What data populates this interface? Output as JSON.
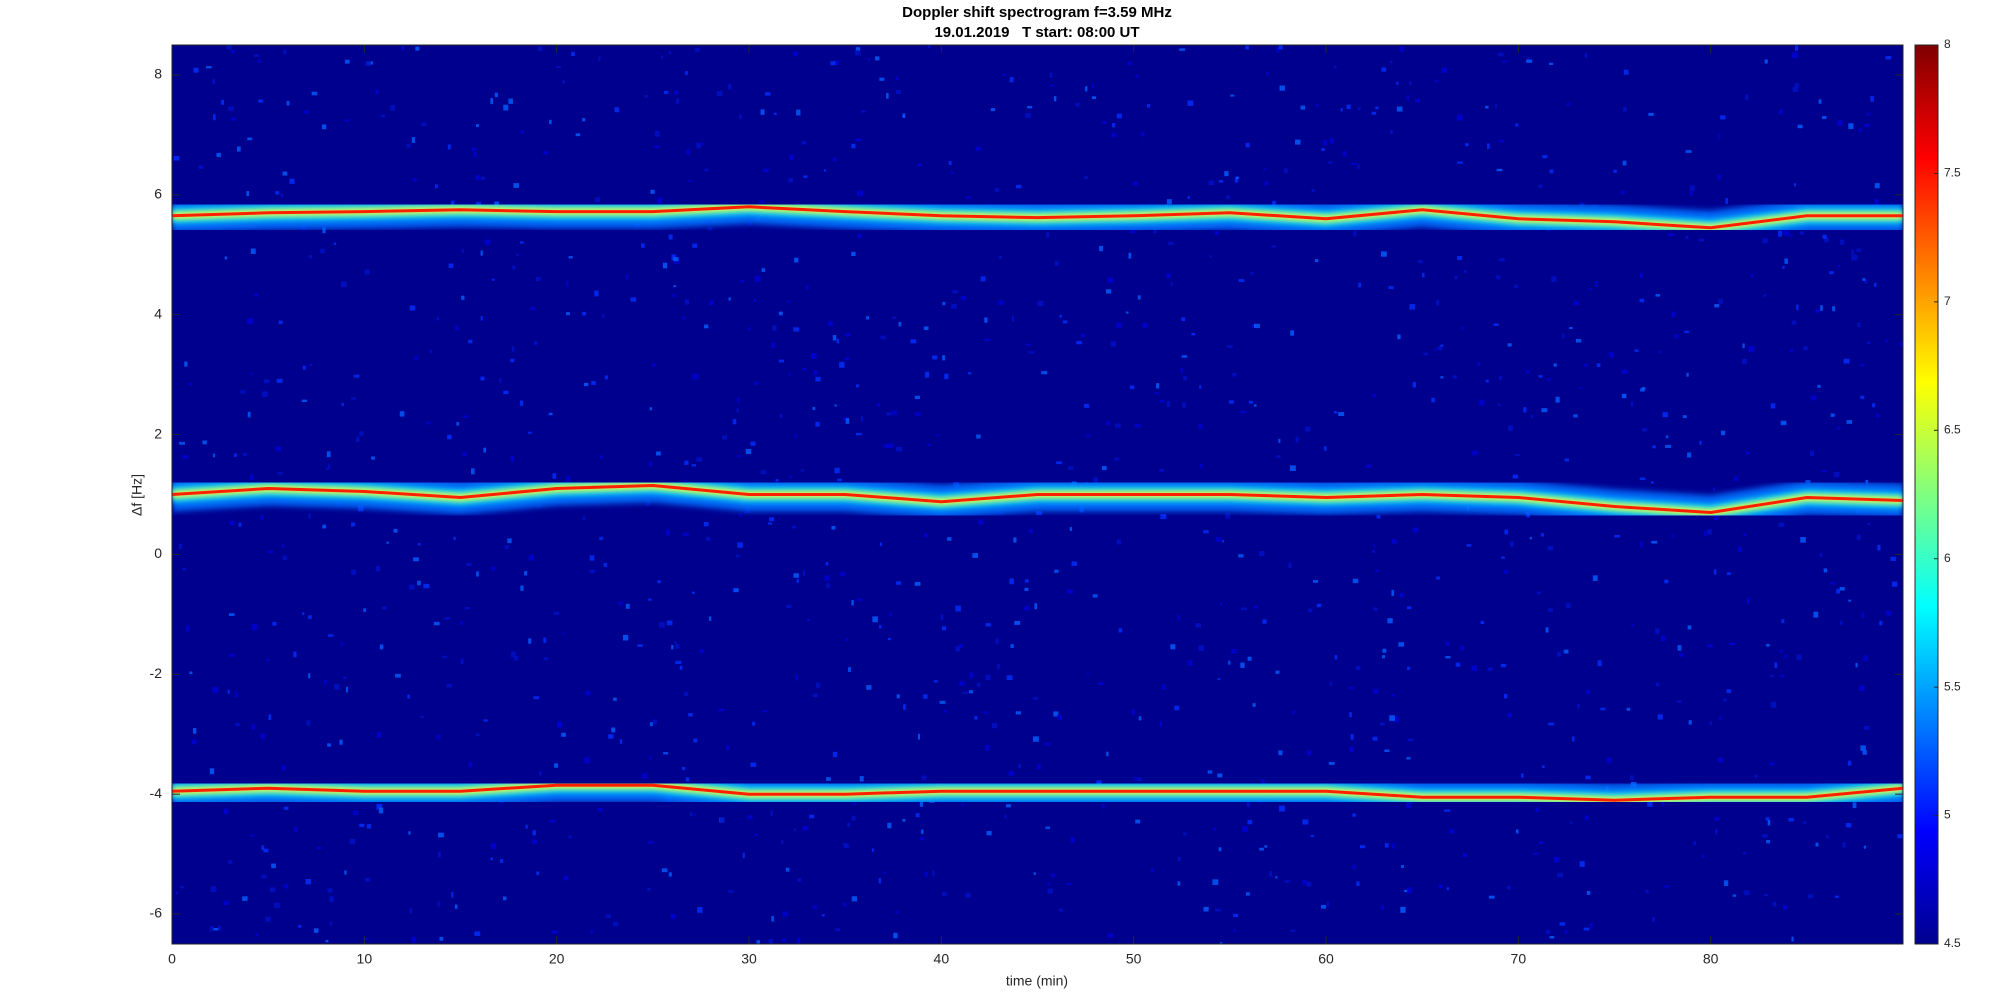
{
  "chart_data": {
    "type": "spectrogram",
    "title": "Doppler shift spectrogram f=3.59 MHz",
    "subtitle": "19.01.2019   T start: 08:00 UT",
    "x_label": "time (min)",
    "y_label": "Δf [Hz]",
    "xlim": [
      0,
      90
    ],
    "xticks": [
      0,
      10,
      20,
      30,
      40,
      50,
      60,
      70,
      80
    ],
    "ylim": [
      -6.5,
      8.5
    ],
    "yticks": [
      -6,
      -4,
      -2,
      0,
      2,
      4,
      6,
      8
    ],
    "clim": [
      4.5,
      8
    ],
    "cticks": [
      4.5,
      5,
      5.5,
      6,
      6.5,
      7,
      7.5,
      8
    ],
    "x": [
      0,
      5,
      10,
      15,
      20,
      25,
      30,
      35,
      40,
      45,
      50,
      55,
      60,
      65,
      70,
      75,
      80,
      85,
      90
    ],
    "series": [
      {
        "color": "#ff2000",
        "values": [
          5.65,
          5.7,
          5.72,
          5.75,
          5.72,
          5.72,
          5.8,
          5.72,
          5.65,
          5.62,
          5.65,
          5.7,
          5.6,
          5.75,
          5.6,
          5.55,
          5.45,
          5.65,
          5.65
        ]
      },
      {
        "color": "#ff2000",
        "values": [
          1.0,
          1.1,
          1.05,
          0.95,
          1.1,
          1.15,
          1.0,
          1.0,
          0.88,
          1.0,
          1.0,
          1.0,
          0.95,
          1.0,
          0.95,
          0.8,
          0.7,
          0.95,
          0.9
        ]
      },
      {
        "color": "#ff2000",
        "values": [
          -3.95,
          -3.9,
          -3.95,
          -3.95,
          -3.85,
          -3.85,
          -4.0,
          -4.0,
          -3.95,
          -3.95,
          -3.95,
          -3.95,
          -3.95,
          -4.05,
          -4.05,
          -4.1,
          -4.05,
          -4.05,
          -3.9
        ]
      }
    ]
  }
}
